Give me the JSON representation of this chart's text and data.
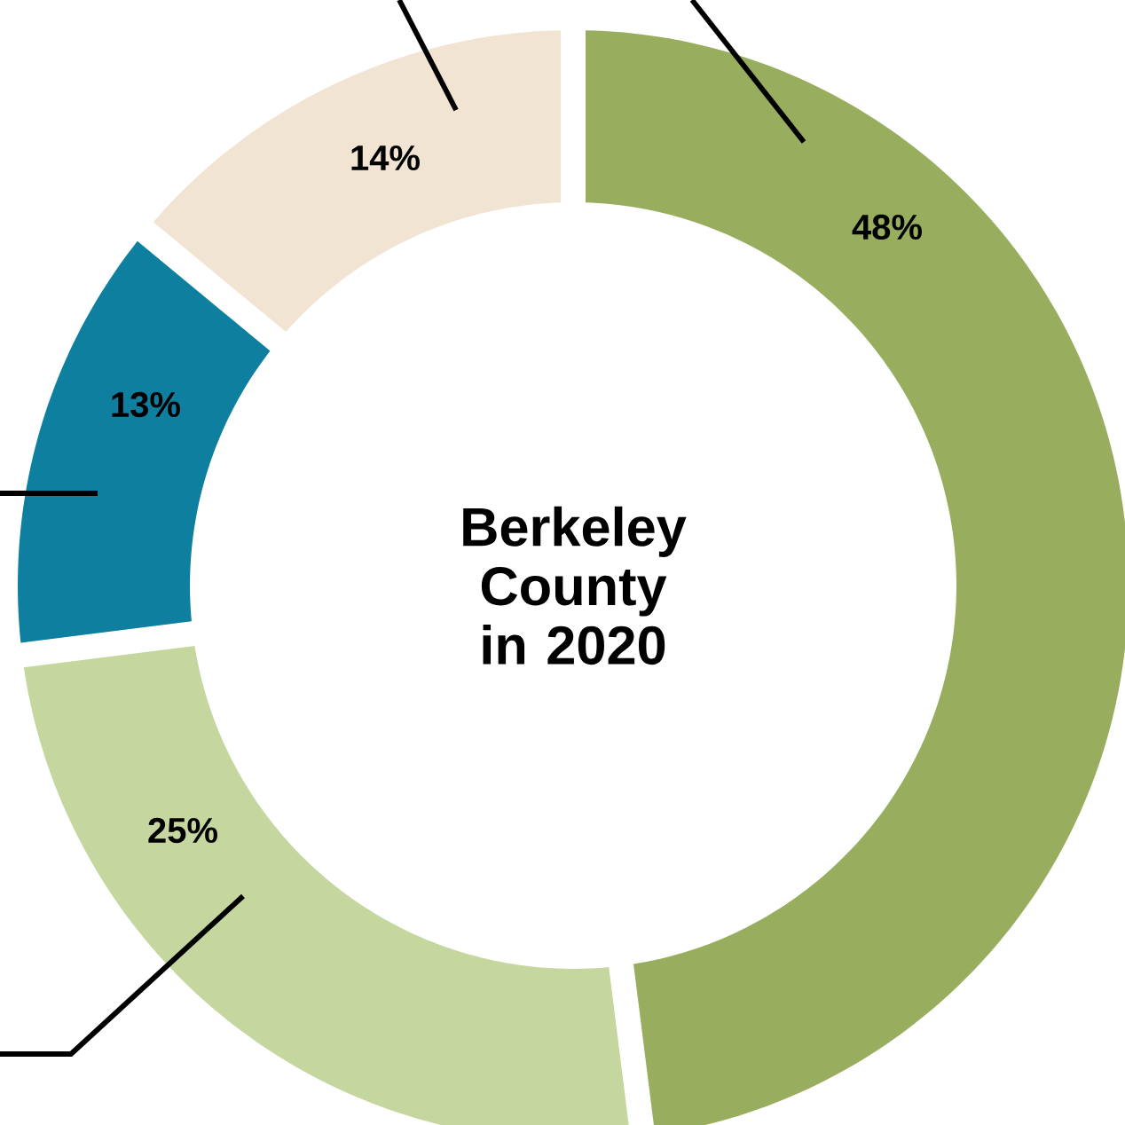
{
  "chart_data": {
    "type": "donut",
    "title": "Berkeley County in 2020",
    "categories": [
      null,
      null,
      null,
      null
    ],
    "values": [
      48,
      25,
      13,
      14
    ],
    "colors": [
      "#98ad5e",
      "#c6d69f",
      "#0f7fa0",
      "#f2e4d3"
    ],
    "value_labels": [
      "48%",
      "25%",
      "13%",
      "14%"
    ]
  }
}
